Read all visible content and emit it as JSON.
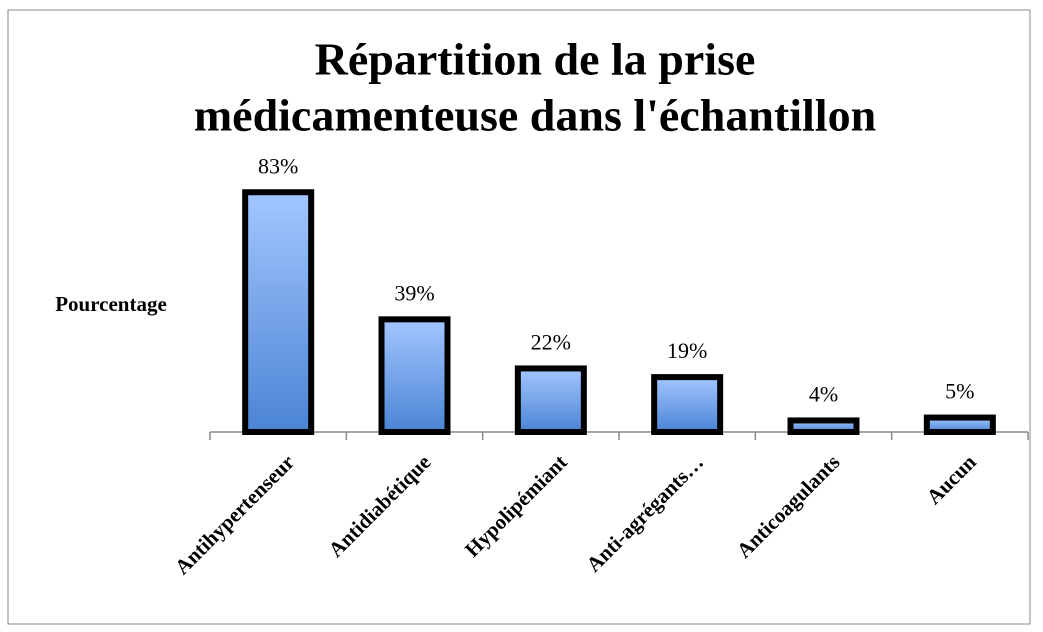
{
  "chart_data": {
    "type": "bar",
    "title": [
      "Répartition de la prise",
      "médicamenteuse dans l'échantillon"
    ],
    "y_label": "Pourcentage",
    "categories": [
      "Antihypertenseur",
      "Antidiabétique",
      "Hypolipémiant",
      "Anti-agrégants…",
      "Anticoagulants",
      "Aucun"
    ],
    "values": [
      83,
      39,
      22,
      19,
      4,
      5
    ],
    "value_labels": [
      "83%",
      "39%",
      "22%",
      "19%",
      "4%",
      "5%"
    ],
    "color": [
      "#a3c6ff",
      "#4a84d4"
    ],
    "ylim": [
      0,
      90
    ]
  }
}
